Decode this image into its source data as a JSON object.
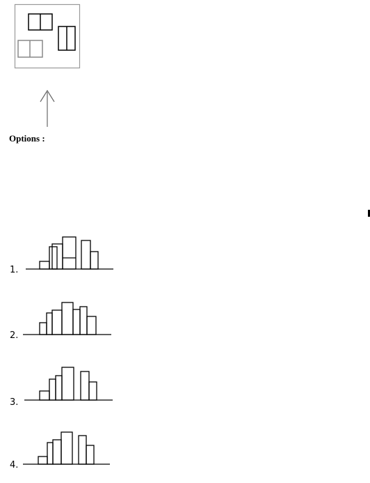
{
  "question": {
    "figure_name": "top-view"
  },
  "options_label": "Options :",
  "options": [
    {
      "label": "1."
    },
    {
      "label": "2."
    },
    {
      "label": "3."
    },
    {
      "label": "4."
    }
  ],
  "colors": {
    "line": "#000000",
    "frame": "#999999",
    "light_block": "#888888",
    "arrow": "#666666"
  }
}
